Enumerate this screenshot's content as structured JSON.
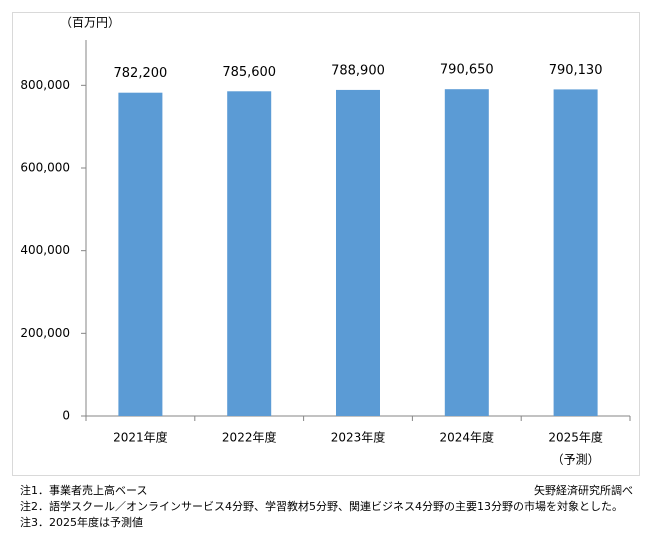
{
  "chart_data": {
    "type": "bar",
    "unit": "（百万円）",
    "categories": [
      "2021年度",
      "2022年度",
      "2023年度",
      "2024年度",
      "2025年度"
    ],
    "forecast_label": "（予測）",
    "values": [
      782200,
      785600,
      788900,
      790650,
      790130
    ],
    "value_labels": [
      "782,200",
      "785,600",
      "788,900",
      "790,650",
      "790,130"
    ],
    "color": "#5b9bd5",
    "ylim": [
      0,
      900000
    ],
    "yticks": [
      0,
      {
        "value": 200000,
        "label": "200,000"
      },
      {
        "value": 400000,
        "label": "400,000"
      },
      {
        "value": 600000,
        "label": "600,000"
      },
      {
        "value": 800000,
        "label": "800,000"
      }
    ],
    "notes": [
      "注1．事業者売上高ベース",
      "注2．語学スクール／オンラインサービス4分野、学習教材5分野、関連ビジネス4分野の主要13分野の市場を対象とした。",
      "注3．2025年度は予測値"
    ],
    "source": "矢野経済研究所調べ"
  }
}
